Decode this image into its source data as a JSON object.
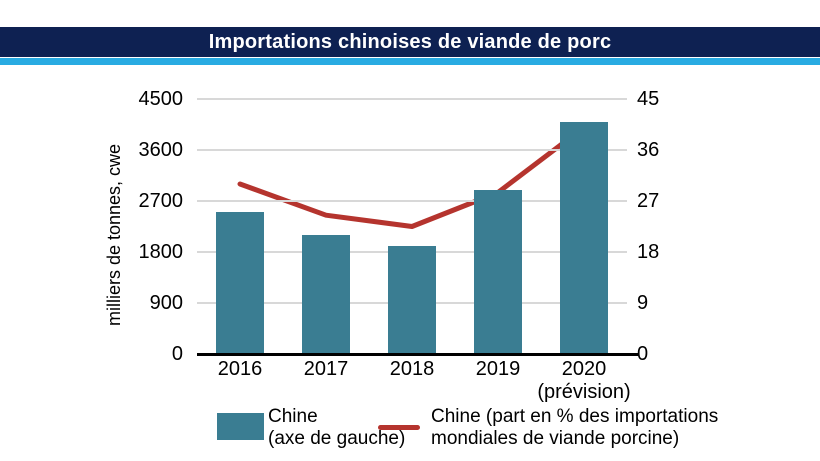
{
  "title": "Importations chinoises de viande de porc",
  "colors": {
    "title_bar_bg": "#0e2152",
    "title_text": "#ffffff",
    "accent_stripe": "#29abe2",
    "bar": "#3a7d92",
    "line": "#b5342e",
    "gridline": "#d8d8d8",
    "axis": "#000000"
  },
  "legend": {
    "bar_label": "Chine\n(axe de gauche)",
    "line_label": "Chine (part en % des importations\nmondiales de viande porcine)"
  },
  "chart_data": {
    "type": "bar+line combo",
    "title": "Importations chinoises de viande de porc",
    "categories": [
      "2016",
      "2017",
      "2018",
      "2019",
      "2020"
    ],
    "xtick_labels": [
      "2016",
      "2017",
      "2018",
      "2019",
      "2020\n(prévision)"
    ],
    "series": [
      {
        "name": "Chine (axe de gauche)",
        "type": "bar",
        "axis": "left",
        "color": "#3a7d92",
        "values": [
          2500,
          2100,
          1900,
          2900,
          4100
        ]
      },
      {
        "name": "Chine (part en % des importations mondiales de viande porcine)",
        "type": "line",
        "axis": "right",
        "color": "#b5342e",
        "values": [
          30,
          24.5,
          22.5,
          28.5,
          40
        ]
      }
    ],
    "ylabel_left": "milliers de tonnes, cwe",
    "ylabel_right": "",
    "ylim_left": [
      0,
      4500
    ],
    "ylim_right": [
      0,
      45
    ],
    "yticks_left": [
      0,
      900,
      1800,
      2700,
      3600,
      4500
    ],
    "yticks_right": [
      0,
      9,
      18,
      27,
      36,
      45
    ],
    "grid": true,
    "legend_position": "bottom"
  }
}
